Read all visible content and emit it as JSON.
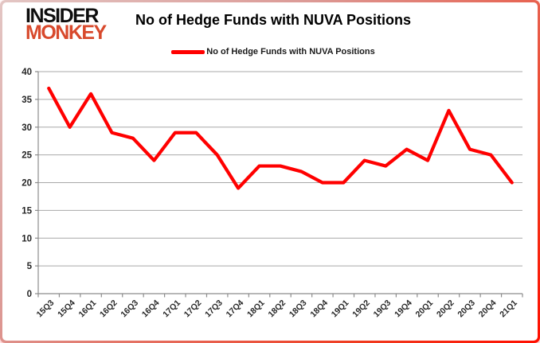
{
  "logo": {
    "line1": "INSIDER",
    "line2": "MONKEY"
  },
  "colors": {
    "series_red": "#ff0000",
    "logo_red": "#d8492c",
    "gridline": "#a8a8a8",
    "axis_line": "#8c8c8c",
    "axis_text": "#262626",
    "frame_red": "#ff0f00"
  },
  "chart_data": {
    "type": "line",
    "title": "No of Hedge Funds with NUVA Positions",
    "legend": "No of Hedge Funds with NUVA Positions",
    "legend_position": "top",
    "grid": true,
    "xlabel": "",
    "ylabel": "",
    "categories": [
      "15Q3",
      "15Q4",
      "16Q1",
      "16Q2",
      "16Q3",
      "16Q4",
      "17Q1",
      "17Q2",
      "17Q3",
      "17Q4",
      "18Q1",
      "18Q2",
      "18Q3",
      "18Q4",
      "19Q1",
      "19Q2",
      "19Q3",
      "19Q4",
      "20Q1",
      "20Q2",
      "20Q3",
      "20Q4",
      "21Q1"
    ],
    "values": [
      37,
      30,
      36,
      29,
      28,
      24,
      29,
      29,
      25,
      19,
      23,
      23,
      22,
      20,
      20,
      24,
      23,
      26,
      24,
      33,
      26,
      25,
      20
    ],
    "ylim": [
      0,
      40
    ],
    "yticks": [
      0,
      5,
      10,
      15,
      20,
      25,
      30,
      35,
      40
    ]
  }
}
